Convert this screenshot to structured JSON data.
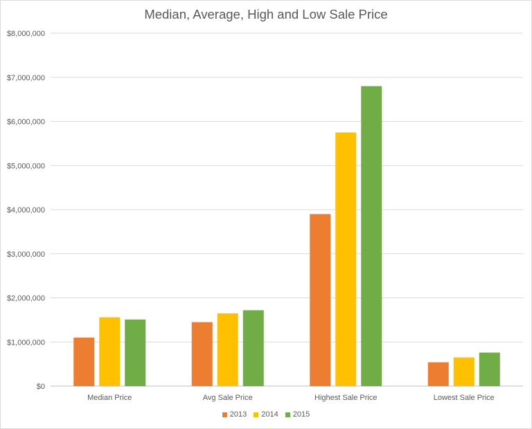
{
  "chart_data": {
    "type": "bar",
    "title": "Median, Average, High and Low Sale Price",
    "categories": [
      "Median Price",
      "Avg Sale Price",
      "Highest Sale Price",
      "Lowest Sale Price"
    ],
    "series": [
      {
        "name": "2013",
        "color": "#ED7D31",
        "values": [
          1100000,
          1450000,
          3900000,
          540000
        ]
      },
      {
        "name": "2014",
        "color": "#FFC000",
        "values": [
          1560000,
          1650000,
          5750000,
          650000
        ]
      },
      {
        "name": "2015",
        "color": "#70AD47",
        "values": [
          1510000,
          1720000,
          6800000,
          760000
        ]
      }
    ],
    "ylim": [
      0,
      8000000
    ],
    "yticks": [
      0,
      1000000,
      2000000,
      3000000,
      4000000,
      5000000,
      6000000,
      7000000,
      8000000
    ],
    "ytick_labels": [
      "$0",
      "$1,000,000",
      "$2,000,000",
      "$3,000,000",
      "$4,000,000",
      "$5,000,000",
      "$6,000,000",
      "$7,000,000",
      "$8,000,000"
    ],
    "grid": true,
    "legend_position": "bottom"
  }
}
